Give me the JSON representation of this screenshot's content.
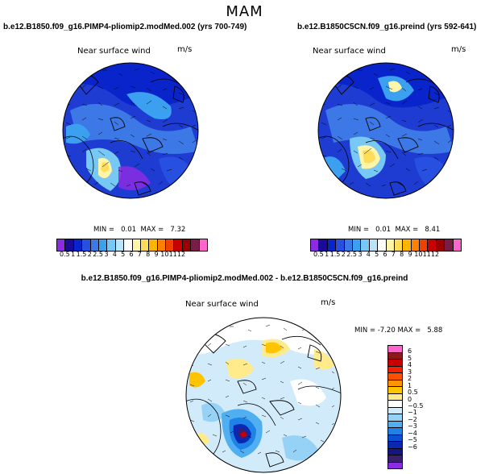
{
  "page": {
    "season_title": "MAM",
    "diff_title": "b.e12.B1850.f09_g16.PIMP4-pliomip2.modMed.002 - b.e12.B1850C5CN.f09_g16.preind"
  },
  "colors": {
    "abs_palette": [
      "#8b2be2",
      "#1a0a9a",
      "#0a24cc",
      "#2850e0",
      "#3c78e6",
      "#3ca0f0",
      "#78c8f5",
      "#b8e4fa",
      "#ffffff",
      "#fff5a8",
      "#ffdc5a",
      "#ffb400",
      "#ff8000",
      "#f04000",
      "#c80000",
      "#9b0000",
      "#781e46",
      "#ff66cc"
    ],
    "diff_palette": [
      "#ff66cc",
      "#8c1a1a",
      "#c80000",
      "#f02000",
      "#ff5000",
      "#ff9600",
      "#ffc300",
      "#ffeb8c",
      "#ffffff",
      "#d2ebfa",
      "#96d2f5",
      "#50aff0",
      "#1e82e6",
      "#0a50d2",
      "#0a28b4",
      "#141482",
      "#3c1e6e",
      "#8b2be2"
    ],
    "coast": "#000000"
  },
  "panels": [
    {
      "id": "top-left",
      "case_title": "b.e12.B1850.f09_g16.PIMP4-pliomip2.modMed.002 (yrs 700-749)",
      "variable": "Near surface wind",
      "units": "m/s",
      "min_label": "MIN =",
      "min": "0.01",
      "max_label": "MAX =",
      "max": "7.32",
      "colorbar_labels": [
        "0.5",
        "1",
        "1.5",
        "2",
        "2.5",
        "3",
        "4",
        "5",
        "6",
        "7",
        "8",
        "9",
        "10",
        "11",
        "12"
      ]
    },
    {
      "id": "top-right",
      "case_title": "b.e12.B1850C5CN.f09_g16.preind (yrs 592-641)",
      "variable": "Near surface wind",
      "units": "m/s",
      "min_label": "MIN =",
      "min": "0.01",
      "max_label": "MAX =",
      "max": "8.41",
      "colorbar_labels": [
        "0.5",
        "1",
        "1.5",
        "2",
        "2.5",
        "3",
        "4",
        "5",
        "6",
        "7",
        "8",
        "9",
        "10",
        "11",
        "12"
      ]
    },
    {
      "id": "difference",
      "variable": "Near surface wind",
      "units": "m/s",
      "min_label": "MIN =",
      "min": "-7.20",
      "max_label": "MAX =",
      "max": "5.88",
      "colorbar_labels": [
        "6",
        "5",
        "4",
        "3",
        "2",
        "1",
        "0.5",
        "0",
        "−0.5",
        "−1",
        "−2",
        "−3",
        "−4",
        "−5",
        "−6"
      ]
    }
  ]
}
